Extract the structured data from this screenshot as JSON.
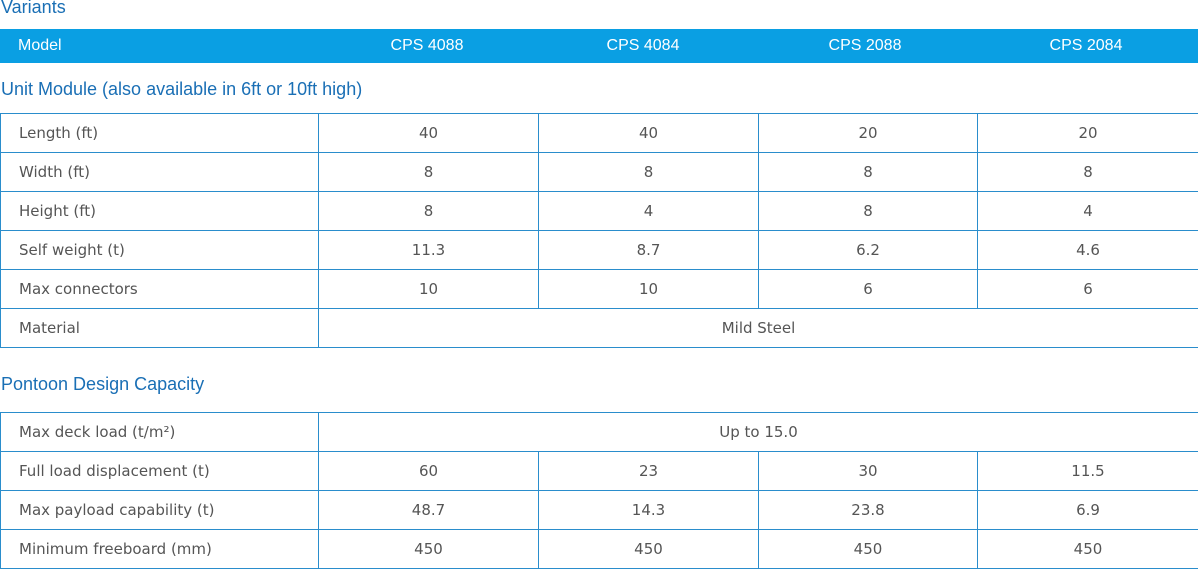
{
  "header": {
    "title": "Variants",
    "columns": [
      "Model",
      "CPS 4088",
      "CPS 4084",
      "CPS 2088",
      "CPS 2084"
    ]
  },
  "sections": [
    {
      "title": "Unit Module (also available in 6ft or 10ft high)",
      "rows": [
        [
          "Length (ft)",
          "40",
          "40",
          "20",
          "20"
        ],
        [
          "Width (ft)",
          "8",
          "8",
          "8",
          "8"
        ],
        [
          "Height (ft)",
          "8",
          "4",
          "8",
          "4"
        ],
        [
          "Self weight (t)",
          "11.3",
          "8.7",
          "6.2",
          "4.6"
        ],
        [
          "Max connectors",
          "10",
          "10",
          "6",
          "6"
        ],
        [
          "Material",
          "Mild Steel"
        ]
      ]
    },
    {
      "title": "Pontoon Design Capacity",
      "rows": [
        [
          "Max deck load (t/m²)",
          "Up to 15.0"
        ],
        [
          "Full load displacement (t)",
          "60",
          "23",
          "30",
          "11.5"
        ],
        [
          "Max payload capability (t)",
          "48.7",
          "14.3",
          "23.8",
          "6.9"
        ],
        [
          "Minimum freeboard (mm)",
          "450",
          "450",
          "450",
          "450"
        ]
      ]
    }
  ]
}
